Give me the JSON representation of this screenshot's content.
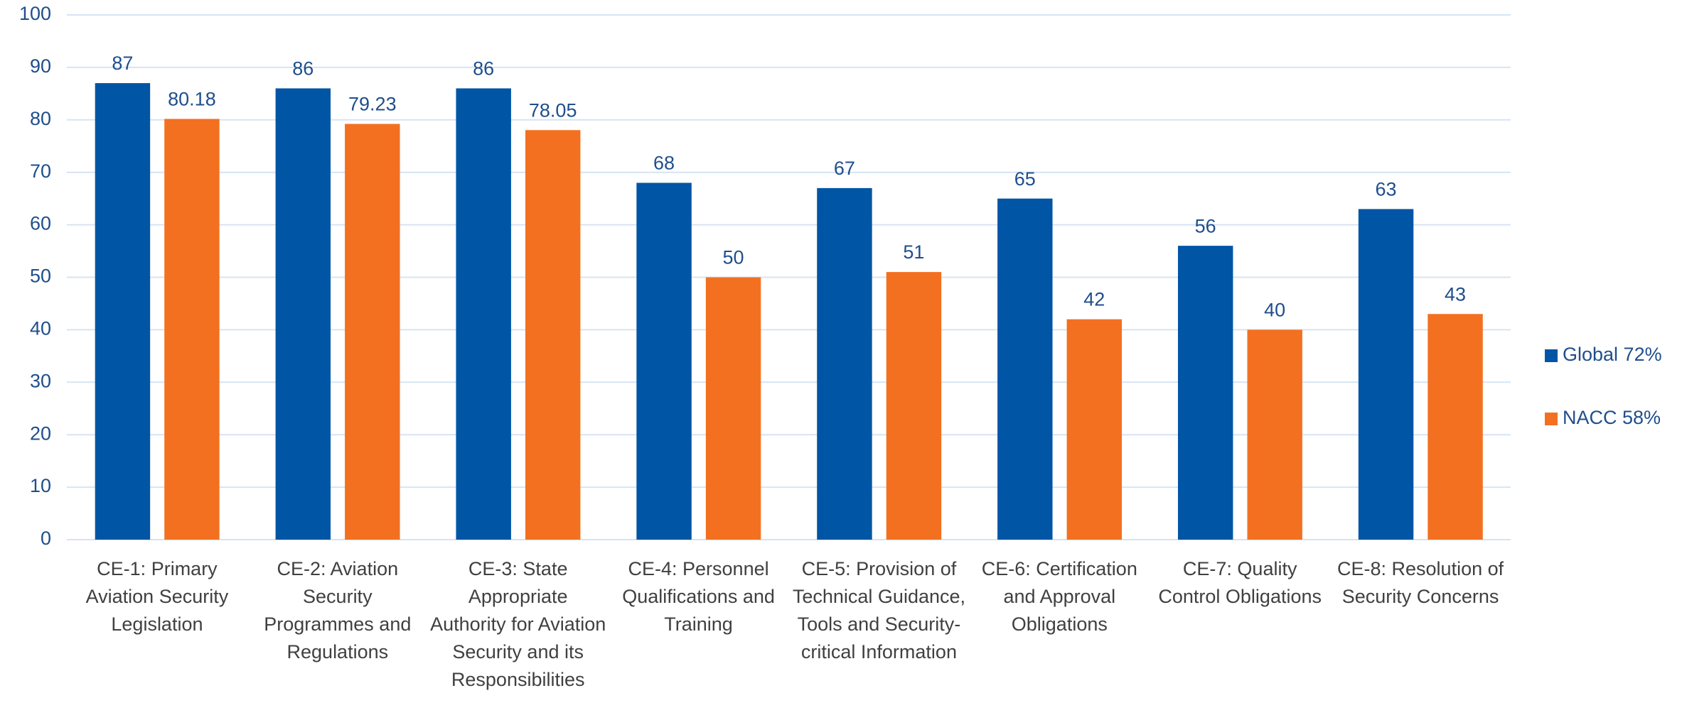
{
  "chart_data": {
    "type": "bar",
    "categories": [
      "CE-1: Primary Aviation Security Legislation",
      "CE-2: Aviation Security Programmes and Regulations",
      "CE-3: State Appropriate Authority for Aviation Security and its Responsibilities",
      "CE-4: Personnel Qualifications and Training",
      "CE-5: Provision of Technical Guidance, Tools and Security-critical Information",
      "CE-6: Certification and Approval Obligations",
      "CE-7: Quality Control Obligations",
      "CE-8: Resolution of Security Concerns"
    ],
    "series": [
      {
        "name": "Global 72%",
        "color": "#0055a5",
        "values": [
          87,
          86,
          86,
          68,
          67,
          65,
          56,
          63
        ]
      },
      {
        "name": "NACC 58%",
        "color": "#f37021",
        "values": [
          80.18,
          79.23,
          78.05,
          50,
          51,
          42,
          40,
          43
        ]
      }
    ],
    "ylim": [
      0,
      100
    ],
    "yticks": [
      0,
      10,
      20,
      30,
      40,
      50,
      60,
      70,
      80,
      90,
      100
    ],
    "grid": true,
    "legend": "right"
  }
}
